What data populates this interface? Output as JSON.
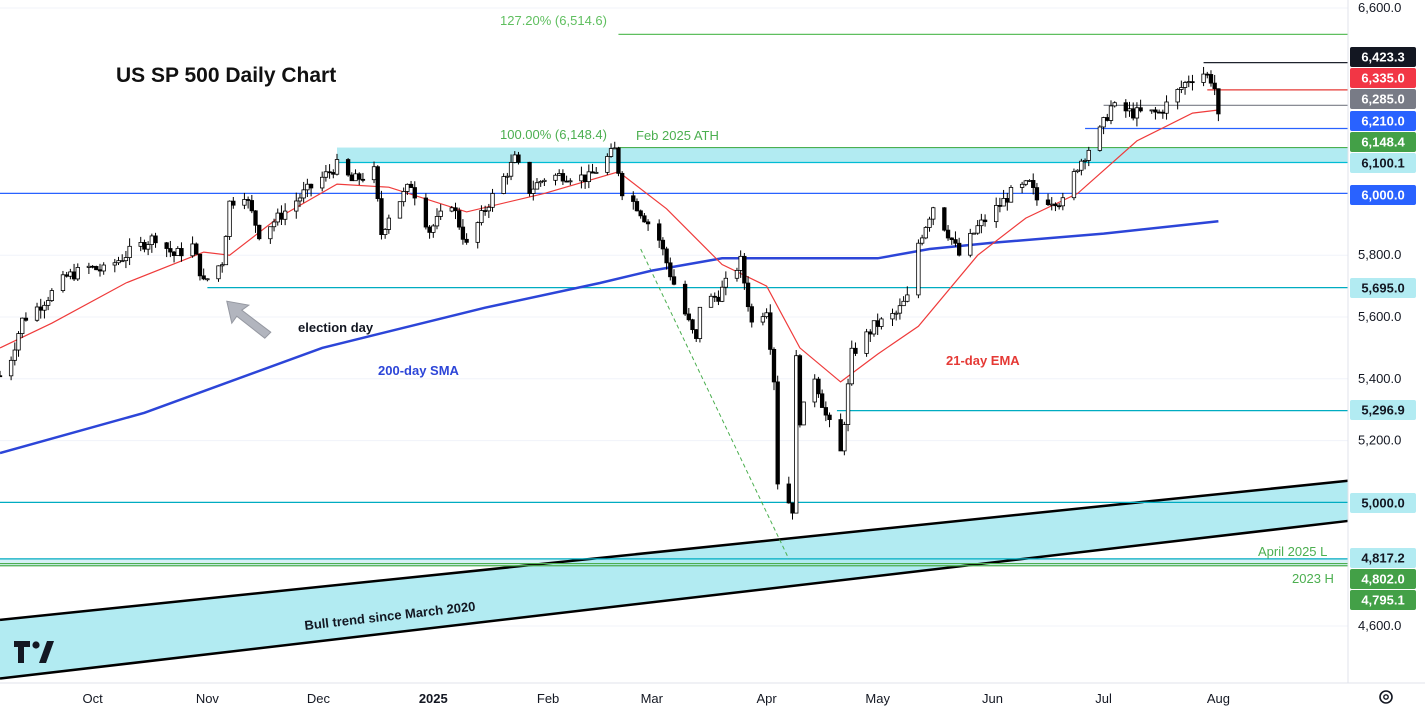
{
  "chart_data": {
    "type": "candlestick",
    "title": "US SP 500 Daily Chart",
    "y_range": [
      4450,
      6650
    ],
    "x_range": [
      "2024-09-06",
      "2025-09-05"
    ],
    "y_ticks": [
      4600,
      5200,
      5400,
      5600,
      5800,
      6000,
      6600
    ],
    "y_tick_labels": [
      "4,600.0",
      "5,200.0",
      "5,400.0",
      "5,600.0",
      "5,800.0",
      "6,000.0",
      "6,600.0"
    ],
    "x_ticks": [
      {
        "date": "2024-10-01",
        "label": "Oct",
        "bold": false
      },
      {
        "date": "2024-11-01",
        "label": "Nov",
        "bold": false
      },
      {
        "date": "2024-12-01",
        "label": "Dec",
        "bold": false
      },
      {
        "date": "2025-01-01",
        "label": "2025",
        "bold": true
      },
      {
        "date": "2025-02-01",
        "label": "Feb",
        "bold": false
      },
      {
        "date": "2025-03-01",
        "label": "Mar",
        "bold": false
      },
      {
        "date": "2025-04-01",
        "label": "Apr",
        "bold": false
      },
      {
        "date": "2025-05-01",
        "label": "May",
        "bold": false
      },
      {
        "date": "2025-06-01",
        "label": "Jun",
        "bold": false
      },
      {
        "date": "2025-07-01",
        "label": "Jul",
        "bold": false
      },
      {
        "date": "2025-08-01",
        "label": "Aug",
        "bold": false
      }
    ],
    "price_keypoints": [
      [
        "2024-09-06",
        5410
      ],
      [
        "2024-09-09",
        5470
      ],
      [
        "2024-09-12",
        5590
      ],
      [
        "2024-09-17",
        5640
      ],
      [
        "2024-09-24",
        5730
      ],
      [
        "2024-09-30",
        5760
      ],
      [
        "2024-10-04",
        5750
      ],
      [
        "2024-10-11",
        5810
      ],
      [
        "2024-10-18",
        5860
      ],
      [
        "2024-10-23",
        5800
      ],
      [
        "2024-10-28",
        5830
      ],
      [
        "2024-10-31",
        5710
      ],
      [
        "2024-11-05",
        5780
      ],
      [
        "2024-11-07",
        5970
      ],
      [
        "2024-11-11",
        6000
      ],
      [
        "2024-11-15",
        5870
      ],
      [
        "2024-11-20",
        5920
      ],
      [
        "2024-11-27",
        6000
      ],
      [
        "2024-12-06",
        6090
      ],
      [
        "2024-12-10",
        6040
      ],
      [
        "2024-12-16",
        6070
      ],
      [
        "2024-12-18",
        5870
      ],
      [
        "2024-12-20",
        5930
      ],
      [
        "2024-12-26",
        6030
      ],
      [
        "2024-12-31",
        5880
      ],
      [
        "2025-01-06",
        5970
      ],
      [
        "2025-01-10",
        5830
      ],
      [
        "2025-01-15",
        5950
      ],
      [
        "2025-01-23",
        6110
      ],
      [
        "2025-01-27",
        6010
      ],
      [
        "2025-01-31",
        6050
      ],
      [
        "2025-02-05",
        6060
      ],
      [
        "2025-02-12",
        6050
      ],
      [
        "2025-02-19",
        6140
      ],
      [
        "2025-02-21",
        6010
      ],
      [
        "2025-02-25",
        5960
      ],
      [
        "2025-03-03",
        5850
      ],
      [
        "2025-03-06",
        5740
      ],
      [
        "2025-03-10",
        5610
      ],
      [
        "2025-03-13",
        5520
      ],
      [
        "2025-03-14",
        5640
      ],
      [
        "2025-03-19",
        5670
      ],
      [
        "2025-03-25",
        5780
      ],
      [
        "2025-03-28",
        5580
      ],
      [
        "2025-04-01",
        5630
      ],
      [
        "2025-04-03",
        5400
      ],
      [
        "2025-04-04",
        5070
      ],
      [
        "2025-04-08",
        4980
      ],
      [
        "2025-04-09",
        5460
      ],
      [
        "2025-04-10",
        5270
      ],
      [
        "2025-04-14",
        5410
      ],
      [
        "2025-04-17",
        5280
      ],
      [
        "2025-04-21",
        5160
      ],
      [
        "2025-04-24",
        5480
      ],
      [
        "2025-04-30",
        5570
      ],
      [
        "2025-05-06",
        5610
      ],
      [
        "2025-05-09",
        5660
      ],
      [
        "2025-05-12",
        5840
      ],
      [
        "2025-05-16",
        5960
      ],
      [
        "2025-05-21",
        5850
      ],
      [
        "2025-05-23",
        5800
      ],
      [
        "2025-05-28",
        5890
      ],
      [
        "2025-06-06",
        6000
      ],
      [
        "2025-06-11",
        6030
      ],
      [
        "2025-06-13",
        5980
      ],
      [
        "2025-06-18",
        5980
      ],
      [
        "2025-06-20",
        5970
      ],
      [
        "2025-06-24",
        6090
      ],
      [
        "2025-06-30",
        6200
      ],
      [
        "2025-07-03",
        6280
      ],
      [
        "2025-07-09",
        6260
      ],
      [
        "2025-07-16",
        6260
      ],
      [
        "2025-07-24",
        6370
      ],
      [
        "2025-07-28",
        6390
      ],
      [
        "2025-07-30",
        6370
      ],
      [
        "2025-07-31",
        6340
      ],
      [
        "2025-08-01",
        6240
      ]
    ],
    "series": [
      {
        "name": "200-day SMA",
        "color": "#2c45d8",
        "points": [
          [
            "2024-09-06",
            5160
          ],
          [
            "2024-10-15",
            5290
          ],
          [
            "2024-12-02",
            5500
          ],
          [
            "2025-01-15",
            5630
          ],
          [
            "2025-02-15",
            5710
          ],
          [
            "2025-03-01",
            5750
          ],
          [
            "2025-03-20",
            5790
          ],
          [
            "2025-04-01",
            5790
          ],
          [
            "2025-05-01",
            5790
          ],
          [
            "2025-05-15",
            5820
          ],
          [
            "2025-06-01",
            5840
          ],
          [
            "2025-07-01",
            5870
          ],
          [
            "2025-08-01",
            5910
          ]
        ]
      },
      {
        "name": "21-day EMA",
        "color": "#ef3b3b",
        "points": [
          [
            "2024-09-06",
            5500
          ],
          [
            "2024-09-20",
            5580
          ],
          [
            "2024-10-10",
            5710
          ],
          [
            "2024-10-31",
            5810
          ],
          [
            "2024-11-07",
            5800
          ],
          [
            "2024-11-20",
            5920
          ],
          [
            "2024-12-06",
            6030
          ],
          [
            "2024-12-20",
            6020
          ],
          [
            "2025-01-10",
            5940
          ],
          [
            "2025-01-31",
            6000
          ],
          [
            "2025-02-20",
            6070
          ],
          [
            "2025-03-05",
            5950
          ],
          [
            "2025-03-20",
            5770
          ],
          [
            "2025-04-01",
            5700
          ],
          [
            "2025-04-10",
            5500
          ],
          [
            "2025-04-21",
            5390
          ],
          [
            "2025-05-01",
            5480
          ],
          [
            "2025-05-12",
            5570
          ],
          [
            "2025-05-28",
            5800
          ],
          [
            "2025-06-10",
            5920
          ],
          [
            "2025-06-24",
            6000
          ],
          [
            "2025-07-10",
            6170
          ],
          [
            "2025-07-25",
            6260
          ],
          [
            "2025-08-01",
            6270
          ]
        ]
      }
    ],
    "horizontal_levels": [
      {
        "value": 6514.6,
        "start": "2025-02-20",
        "color": "#5fbf5f",
        "label": "6,514.6",
        "badge_bg": "",
        "badge_fg": ""
      },
      {
        "value": 6423.3,
        "start": "2025-07-28",
        "color": "#1e222d",
        "label": "6,423.3",
        "badge_bg": "#131722",
        "badge_fg": "#ffffff"
      },
      {
        "value": 6335.0,
        "start": "2025-07-29",
        "color": "#e53935",
        "label": "6,335.0",
        "badge_bg": "#f23645",
        "badge_fg": "#ffffff"
      },
      {
        "value": 6285.0,
        "start": "2025-07-01",
        "color": "#787b86",
        "label": "6,285.0",
        "badge_bg": "#787b86",
        "badge_fg": "#ffffff"
      },
      {
        "value": 6210.0,
        "start": "2025-06-26",
        "color": "#2962ff",
        "label": "6,210.0",
        "badge_bg": "#2962ff",
        "badge_fg": "#ffffff"
      },
      {
        "value": 6148.4,
        "start": "2025-02-20",
        "color": "#4caf50",
        "label": "6,148.4",
        "badge_bg": "#43a047",
        "badge_fg": "#ffffff"
      },
      {
        "value": 6100.1,
        "start": "2024-12-06",
        "color": "#00bcd4",
        "label": "6,100.1",
        "badge_bg": "#b2ebf2",
        "badge_fg": "#131722"
      },
      {
        "value": 6000.0,
        "start": "2024-09-06",
        "color": "#2962ff",
        "label": "6,000.0",
        "badge_bg": "#2962ff",
        "badge_fg": "#ffffff"
      },
      {
        "value": 5695.0,
        "start": "2024-11-01",
        "color": "#00acc1",
        "label": "5,695.0",
        "badge_bg": "#b2ebf2",
        "badge_fg": "#131722"
      },
      {
        "value": 5296.9,
        "start": "2025-04-20",
        "color": "#00acc1",
        "label": "5,296.9",
        "badge_bg": "#b2ebf2",
        "badge_fg": "#131722"
      },
      {
        "value": 5000.0,
        "start": "2024-09-06",
        "color": "#00acc1",
        "label": "5,000.0",
        "badge_bg": "#b2ebf2",
        "badge_fg": "#131722"
      },
      {
        "value": 4817.2,
        "start": "2024-09-06",
        "color": "#00acc1",
        "label": "4,817.2",
        "badge_bg": "#b2ebf2",
        "badge_fg": "#131722"
      },
      {
        "value": 4802.0,
        "start": "2024-09-06",
        "color": "#4caf50",
        "label": "4,802.0",
        "badge_bg": "#43a047",
        "badge_fg": "#ffffff"
      },
      {
        "value": 4795.1,
        "start": "2024-09-06",
        "color": "#4caf50",
        "label": "4,795.1",
        "badge_bg": "#43a047",
        "badge_fg": "#ffffff"
      }
    ],
    "zones": [
      {
        "name": "Feb 2025 ATH",
        "from": 6100.1,
        "to": 6148.4,
        "start": "2024-12-06",
        "color": "#b2ebf2"
      },
      {
        "name": "April 2025 L",
        "from": 4795.1,
        "to": 4817.2,
        "start": "2024-09-06",
        "color": "#d6f1f6"
      }
    ],
    "channel": {
      "name": "Bull trend since March 2020",
      "upper": [
        [
          "2024-09-06",
          4620
        ],
        [
          "2025-09-05",
          5070
        ]
      ],
      "lower": [
        [
          "2024-09-06",
          4430
        ],
        [
          "2025-09-05",
          4940
        ]
      ],
      "color": "#b2ebf2"
    },
    "dashed_line": {
      "from": [
        "2025-02-26",
        5820
      ],
      "to": [
        "2025-04-07",
        4817.2
      ],
      "color": "#4caf50"
    },
    "annotations": {
      "fib_127": "127.20% (6,514.6)",
      "fib_100": "100.00% (6,148.4)",
      "ath": "Feb 2025 ATH",
      "election": "election day",
      "sma_label": "200-day SMA",
      "ema_label": "21-day EMA",
      "april_low": "April 2025 L",
      "h2023": "2023 H",
      "channel_label": "Bull trend since March 2020"
    },
    "annotation_positions": {
      "election_arrow_date": "2024-11-03",
      "election_arrow_price": 5690
    },
    "colors": {
      "up": "#ffffff",
      "down": "#000000",
      "wick": "#000000",
      "grid": "#f0f3fa",
      "axis_text": "#131722"
    }
  }
}
